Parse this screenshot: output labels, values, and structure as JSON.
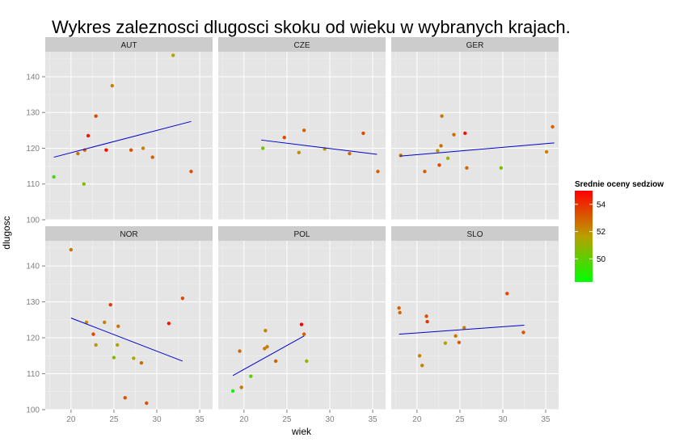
{
  "chart_data": {
    "type": "scatter",
    "title": "Wykres zaleznosci dlugosci skoku od wieku w wybranych krajach.",
    "xlabel": "wiek",
    "ylabel": "dlugosc",
    "xlim": [
      17,
      36.5
    ],
    "ylim": [
      100,
      147
    ],
    "x_ticks": [
      20,
      25,
      30,
      35
    ],
    "y_ticks": [
      100,
      110,
      120,
      130,
      140
    ],
    "grid": true,
    "legend": {
      "title": "Srednie oceny sedziow",
      "placement": "right",
      "ticks": [
        50,
        52,
        54
      ],
      "range": [
        48.3,
        55
      ],
      "colors": {
        "low": "#00ff00",
        "mid": "#b8a000",
        "high": "#ff0000"
      }
    },
    "trend_color": "#0000cc",
    "panels": [
      {
        "name": "AUT",
        "points": [
          {
            "x": 18.0,
            "y": 112.0,
            "score": 49.5
          },
          {
            "x": 20.8,
            "y": 118.5,
            "score": 52.5
          },
          {
            "x": 21.5,
            "y": 110.0,
            "score": 50.5
          },
          {
            "x": 21.6,
            "y": 119.5,
            "score": 53.0
          },
          {
            "x": 22.0,
            "y": 123.5,
            "score": 54.6
          },
          {
            "x": 22.9,
            "y": 129.0,
            "score": 53.5
          },
          {
            "x": 24.1,
            "y": 119.5,
            "score": 54.8
          },
          {
            "x": 24.8,
            "y": 137.5,
            "score": 52.3
          },
          {
            "x": 27.0,
            "y": 119.5,
            "score": 53.3
          },
          {
            "x": 28.4,
            "y": 120.0,
            "score": 52.3
          },
          {
            "x": 29.5,
            "y": 117.5,
            "score": 53.0
          },
          {
            "x": 31.9,
            "y": 146.0,
            "score": 51.5
          },
          {
            "x": 34.0,
            "y": 113.5,
            "score": 53.3
          }
        ],
        "trend": [
          {
            "x": 18.0,
            "y": 117.5
          },
          {
            "x": 34.0,
            "y": 127.5
          }
        ]
      },
      {
        "name": "CZE",
        "points": [
          {
            "x": 22.2,
            "y": 120.0,
            "score": 50.5
          },
          {
            "x": 24.7,
            "y": 123.0,
            "score": 53.5
          },
          {
            "x": 26.4,
            "y": 118.8,
            "score": 52.0
          },
          {
            "x": 27.0,
            "y": 125.0,
            "score": 53.0
          },
          {
            "x": 29.4,
            "y": 119.8,
            "score": 51.8
          },
          {
            "x": 32.3,
            "y": 118.5,
            "score": 52.8
          },
          {
            "x": 33.9,
            "y": 124.2,
            "score": 53.5
          },
          {
            "x": 35.6,
            "y": 113.5,
            "score": 53.0
          }
        ],
        "trend": [
          {
            "x": 22.0,
            "y": 122.3
          },
          {
            "x": 35.5,
            "y": 118.3
          }
        ]
      },
      {
        "name": "GER",
        "points": [
          {
            "x": 18.1,
            "y": 118.0,
            "score": 52.5
          },
          {
            "x": 20.9,
            "y": 113.5,
            "score": 53.0
          },
          {
            "x": 22.6,
            "y": 115.3,
            "score": 53.5
          },
          {
            "x": 22.4,
            "y": 119.3,
            "score": 51.8
          },
          {
            "x": 22.8,
            "y": 120.7,
            "score": 52.8
          },
          {
            "x": 22.9,
            "y": 129.0,
            "score": 52.5
          },
          {
            "x": 23.6,
            "y": 117.2,
            "score": 51.2
          },
          {
            "x": 24.3,
            "y": 123.8,
            "score": 52.8
          },
          {
            "x": 25.6,
            "y": 124.2,
            "score": 54.6
          },
          {
            "x": 25.8,
            "y": 114.5,
            "score": 52.8
          },
          {
            "x": 29.8,
            "y": 114.5,
            "score": 50.5
          },
          {
            "x": 35.1,
            "y": 119.0,
            "score": 52.3
          },
          {
            "x": 35.8,
            "y": 126.0,
            "score": 53.0
          }
        ],
        "trend": [
          {
            "x": 18.0,
            "y": 117.8
          },
          {
            "x": 36.0,
            "y": 121.5
          }
        ]
      },
      {
        "name": "NOR",
        "points": [
          {
            "x": 20.0,
            "y": 144.5,
            "score": 52.5
          },
          {
            "x": 21.8,
            "y": 124.3,
            "score": 52.0
          },
          {
            "x": 22.6,
            "y": 121.0,
            "score": 53.5
          },
          {
            "x": 22.9,
            "y": 118.0,
            "score": 51.8
          },
          {
            "x": 23.9,
            "y": 124.3,
            "score": 52.3
          },
          {
            "x": 24.6,
            "y": 129.2,
            "score": 53.8
          },
          {
            "x": 25.0,
            "y": 114.5,
            "score": 50.8
          },
          {
            "x": 25.4,
            "y": 118.0,
            "score": 51.5
          },
          {
            "x": 25.5,
            "y": 123.2,
            "score": 52.5
          },
          {
            "x": 26.3,
            "y": 103.3,
            "score": 53.3
          },
          {
            "x": 27.3,
            "y": 114.3,
            "score": 51.5
          },
          {
            "x": 28.2,
            "y": 113.0,
            "score": 52.8
          },
          {
            "x": 28.8,
            "y": 101.8,
            "score": 53.3
          },
          {
            "x": 31.4,
            "y": 124.0,
            "score": 54.6
          },
          {
            "x": 33.0,
            "y": 131.0,
            "score": 53.5
          }
        ],
        "trend": [
          {
            "x": 20.0,
            "y": 125.5
          },
          {
            "x": 33.0,
            "y": 113.5
          }
        ]
      },
      {
        "name": "POL",
        "points": [
          {
            "x": 18.7,
            "y": 105.2,
            "score": 48.8
          },
          {
            "x": 19.5,
            "y": 116.3,
            "score": 52.8
          },
          {
            "x": 19.7,
            "y": 106.2,
            "score": 52.5
          },
          {
            "x": 20.8,
            "y": 109.3,
            "score": 50.0
          },
          {
            "x": 22.4,
            "y": 117.0,
            "score": 52.5
          },
          {
            "x": 22.5,
            "y": 122.0,
            "score": 52.3
          },
          {
            "x": 22.7,
            "y": 117.5,
            "score": 52.3
          },
          {
            "x": 23.7,
            "y": 113.5,
            "score": 53.0
          },
          {
            "x": 26.7,
            "y": 123.7,
            "score": 55.0
          },
          {
            "x": 27.0,
            "y": 121.0,
            "score": 53.0
          },
          {
            "x": 27.3,
            "y": 113.5,
            "score": 51.0
          }
        ],
        "trend": [
          {
            "x": 18.7,
            "y": 109.5
          },
          {
            "x": 27.0,
            "y": 120.5
          }
        ]
      },
      {
        "name": "SLO",
        "points": [
          {
            "x": 17.9,
            "y": 128.3,
            "score": 53.0
          },
          {
            "x": 18.0,
            "y": 127.0,
            "score": 52.8
          },
          {
            "x": 20.3,
            "y": 115.0,
            "score": 52.3
          },
          {
            "x": 20.6,
            "y": 112.3,
            "score": 52.3
          },
          {
            "x": 21.1,
            "y": 126.0,
            "score": 53.3
          },
          {
            "x": 21.2,
            "y": 124.5,
            "score": 54.0
          },
          {
            "x": 23.3,
            "y": 118.5,
            "score": 51.5
          },
          {
            "x": 24.5,
            "y": 120.5,
            "score": 52.5
          },
          {
            "x": 24.9,
            "y": 118.7,
            "score": 53.0
          },
          {
            "x": 25.5,
            "y": 122.8,
            "score": 52.3
          },
          {
            "x": 30.5,
            "y": 132.3,
            "score": 53.5
          },
          {
            "x": 32.4,
            "y": 121.5,
            "score": 53.3
          }
        ],
        "trend": [
          {
            "x": 17.9,
            "y": 121.0
          },
          {
            "x": 32.5,
            "y": 123.5
          }
        ]
      }
    ]
  }
}
